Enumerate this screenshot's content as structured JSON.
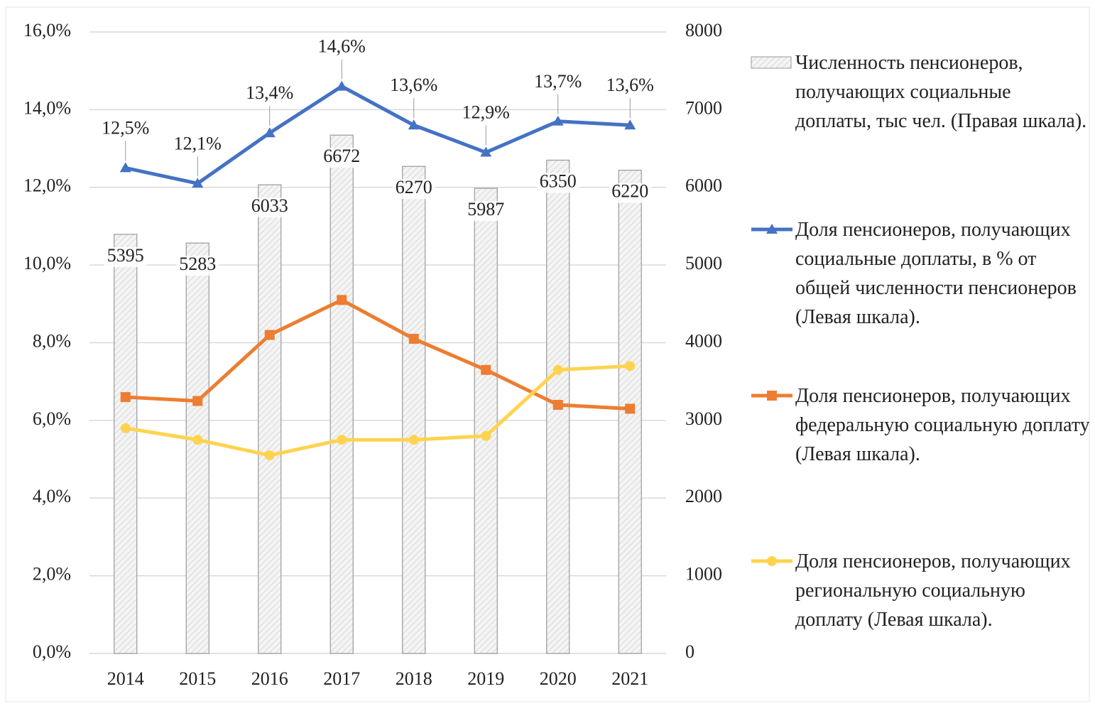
{
  "chart_data": {
    "type": "combo",
    "categories": [
      "2014",
      "2015",
      "2016",
      "2017",
      "2018",
      "2019",
      "2020",
      "2021"
    ],
    "series": [
      {
        "name": "Численность пенсионеров, получающих социальные доплаты, тыс чел. (Правая шкала).",
        "type": "bar",
        "axis": "y2",
        "color": "#f2f2f2",
        "values": [
          5395,
          5283,
          6033,
          6672,
          6270,
          5987,
          6350,
          6220
        ]
      },
      {
        "name": "Доля пенсионеров, получающих социальные доплаты, в % от общей численности пенсионеров (Левая шкала).",
        "type": "line",
        "color": "#4472c4",
        "marker": "triangle",
        "values": [
          12.5,
          12.1,
          13.4,
          14.6,
          13.6,
          12.9,
          13.7,
          13.6
        ],
        "value_labels": [
          "12,5%",
          "12,1%",
          "13,4%",
          "14,6%",
          "13,6%",
          "12,9%",
          "13,7%",
          "13,6%"
        ]
      },
      {
        "name": "Доля пенсионеров, получающих федеральную социальную доплату (Левая шкала).",
        "type": "line",
        "color": "#ed7d31",
        "marker": "square",
        "values": [
          6.6,
          6.5,
          8.2,
          9.1,
          8.1,
          7.3,
          6.4,
          6.3
        ]
      },
      {
        "name": "Доля пенсионеров, получающих региональную социальную доплату (Левая шкала).",
        "type": "line",
        "color": "#ffd34e",
        "marker": "circle",
        "values": [
          5.8,
          5.5,
          5.1,
          5.5,
          5.5,
          5.6,
          7.3,
          7.4
        ]
      }
    ],
    "ylim": [
      0,
      16
    ],
    "yticks": [
      {
        "value": 0,
        "label": "0,0%"
      },
      {
        "value": 2,
        "label": "2,0%"
      },
      {
        "value": 4,
        "label": "4,0%"
      },
      {
        "value": 6,
        "label": "6,0%"
      },
      {
        "value": 8,
        "label": "8,0%"
      },
      {
        "value": 10,
        "label": "10,0%"
      },
      {
        "value": 12,
        "label": "12,0%"
      },
      {
        "value": 14,
        "label": "14,0%"
      },
      {
        "value": 16,
        "label": "16,0%"
      }
    ],
    "y2lim": [
      0,
      8000
    ],
    "y2ticks": [
      0,
      1000,
      2000,
      3000,
      4000,
      5000,
      6000,
      7000,
      8000
    ],
    "grid": true,
    "legend": "right"
  }
}
